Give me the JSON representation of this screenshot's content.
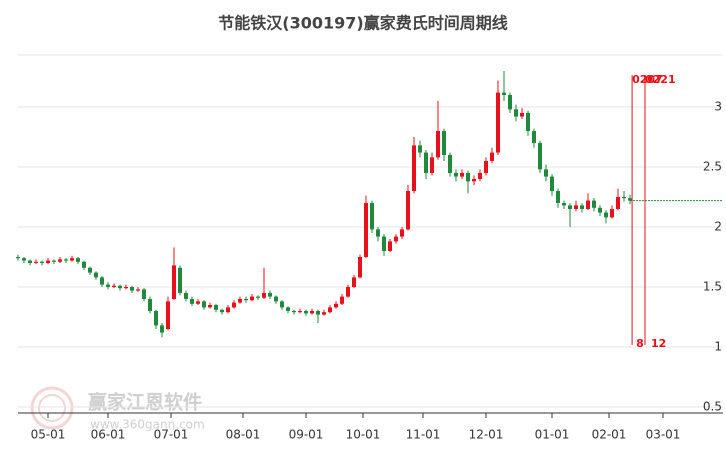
{
  "chart_data": {
    "type": "candlestick",
    "title": "节能铁汉(300197)赢家费氏时间周期线",
    "watermark": "赢家江恩软件",
    "watermark_url": "www.360gann.com",
    "up_color": "#e8101a",
    "down_color": "#1f8a3c",
    "xlim": [
      0,
      235
    ],
    "ylim": [
      0.45,
      3.433
    ],
    "yticks": [
      0.5,
      1,
      1.5,
      2,
      2.5,
      3
    ],
    "grid": true,
    "xticks": [
      {
        "value": 10,
        "label": "05-01"
      },
      {
        "value": 30,
        "label": "06-01"
      },
      {
        "value": 51,
        "label": "07-01"
      },
      {
        "value": 75,
        "label": "08-01"
      },
      {
        "value": 96,
        "label": "09-01"
      },
      {
        "value": 115,
        "label": "10-01"
      },
      {
        "value": 135,
        "label": "11-01"
      },
      {
        "value": 156,
        "label": "12-01"
      },
      {
        "value": 178,
        "label": "01-01"
      },
      {
        "value": 197,
        "label": "02-01"
      },
      {
        "value": 215,
        "label": "03-01"
      }
    ],
    "cycle_lines": [
      {
        "x": 204.7,
        "top_label": "0207",
        "bottom_label": "8"
      },
      {
        "x": 209,
        "top_label": "0221",
        "bottom_label": "12"
      }
    ],
    "x": [
      0,
      2,
      4,
      6,
      8,
      10,
      12,
      14,
      16,
      18,
      20,
      22,
      24,
      26,
      28,
      30,
      32,
      34,
      36,
      38,
      40,
      42,
      44,
      46,
      48,
      50,
      52,
      54,
      56,
      58,
      60,
      62,
      64,
      66,
      68,
      70,
      72,
      74,
      76,
      78,
      80,
      82,
      84,
      86,
      88,
      90,
      92,
      94,
      96,
      98,
      100,
      102,
      104,
      106,
      108,
      110,
      112,
      114,
      116,
      118,
      120,
      122,
      124,
      126,
      128,
      130,
      132,
      134,
      136,
      138,
      140,
      142,
      144,
      146,
      148,
      150,
      152,
      154,
      156,
      158,
      160,
      162,
      164,
      166,
      168,
      170,
      172,
      174,
      176,
      178,
      180,
      182,
      184,
      186,
      188,
      190,
      192,
      194,
      196,
      198,
      200,
      202,
      204
    ],
    "candles": [
      [
        1.75,
        1.77,
        1.72,
        1.74
      ],
      [
        1.74,
        1.75,
        1.7,
        1.72
      ],
      [
        1.72,
        1.73,
        1.68,
        1.7
      ],
      [
        1.7,
        1.73,
        1.69,
        1.71
      ],
      [
        1.71,
        1.72,
        1.68,
        1.7
      ],
      [
        1.7,
        1.74,
        1.69,
        1.72
      ],
      [
        1.72,
        1.73,
        1.69,
        1.71
      ],
      [
        1.71,
        1.75,
        1.7,
        1.73
      ],
      [
        1.73,
        1.74,
        1.7,
        1.72
      ],
      [
        1.72,
        1.76,
        1.71,
        1.74
      ],
      [
        1.74,
        1.75,
        1.69,
        1.71
      ],
      [
        1.71,
        1.72,
        1.64,
        1.66
      ],
      [
        1.66,
        1.67,
        1.6,
        1.62
      ],
      [
        1.62,
        1.63,
        1.56,
        1.58
      ],
      [
        1.58,
        1.59,
        1.5,
        1.52
      ],
      [
        1.52,
        1.54,
        1.48,
        1.5
      ],
      [
        1.5,
        1.53,
        1.49,
        1.51
      ],
      [
        1.51,
        1.52,
        1.47,
        1.49
      ],
      [
        1.49,
        1.52,
        1.48,
        1.5
      ],
      [
        1.5,
        1.51,
        1.45,
        1.47
      ],
      [
        1.47,
        1.5,
        1.46,
        1.48
      ],
      [
        1.48,
        1.49,
        1.38,
        1.4
      ],
      [
        1.4,
        1.42,
        1.28,
        1.3
      ],
      [
        1.3,
        1.31,
        1.15,
        1.18
      ],
      [
        1.18,
        1.2,
        1.08,
        1.12
      ],
      [
        1.15,
        1.42,
        1.14,
        1.38
      ],
      [
        1.4,
        1.83,
        1.39,
        1.68
      ],
      [
        1.66,
        1.68,
        1.43,
        1.45
      ],
      [
        1.45,
        1.47,
        1.38,
        1.4
      ],
      [
        1.4,
        1.42,
        1.34,
        1.36
      ],
      [
        1.36,
        1.4,
        1.35,
        1.38
      ],
      [
        1.38,
        1.39,
        1.31,
        1.33
      ],
      [
        1.33,
        1.37,
        1.32,
        1.35
      ],
      [
        1.35,
        1.36,
        1.29,
        1.31
      ],
      [
        1.31,
        1.32,
        1.27,
        1.29
      ],
      [
        1.29,
        1.35,
        1.28,
        1.33
      ],
      [
        1.33,
        1.39,
        1.32,
        1.37
      ],
      [
        1.37,
        1.42,
        1.36,
        1.4
      ],
      [
        1.4,
        1.42,
        1.37,
        1.39
      ],
      [
        1.39,
        1.44,
        1.38,
        1.42
      ],
      [
        1.42,
        1.43,
        1.39,
        1.41
      ],
      [
        1.41,
        1.66,
        1.4,
        1.45
      ],
      [
        1.45,
        1.47,
        1.4,
        1.42
      ],
      [
        1.42,
        1.43,
        1.36,
        1.38
      ],
      [
        1.38,
        1.39,
        1.31,
        1.33
      ],
      [
        1.33,
        1.34,
        1.28,
        1.3
      ],
      [
        1.3,
        1.31,
        1.27,
        1.29
      ],
      [
        1.29,
        1.32,
        1.28,
        1.3
      ],
      [
        1.3,
        1.31,
        1.26,
        1.28
      ],
      [
        1.28,
        1.32,
        1.27,
        1.3
      ],
      [
        1.3,
        1.31,
        1.2,
        1.27
      ],
      [
        1.27,
        1.31,
        1.26,
        1.29
      ],
      [
        1.29,
        1.35,
        1.28,
        1.33
      ],
      [
        1.33,
        1.38,
        1.32,
        1.36
      ],
      [
        1.36,
        1.44,
        1.35,
        1.42
      ],
      [
        1.42,
        1.52,
        1.41,
        1.5
      ],
      [
        1.5,
        1.6,
        1.49,
        1.58
      ],
      [
        1.58,
        1.77,
        1.57,
        1.75
      ],
      [
        1.75,
        2.26,
        1.74,
        2.2
      ],
      [
        2.2,
        2.22,
        1.95,
        1.98
      ],
      [
        1.98,
        2.0,
        1.88,
        1.92
      ],
      [
        1.92,
        1.94,
        1.76,
        1.8
      ],
      [
        1.8,
        1.9,
        1.79,
        1.88
      ],
      [
        1.88,
        1.94,
        1.86,
        1.92
      ],
      [
        1.92,
        2.0,
        1.9,
        1.98
      ],
      [
        1.98,
        2.35,
        1.97,
        2.3
      ],
      [
        2.3,
        2.75,
        2.28,
        2.68
      ],
      [
        2.68,
        2.72,
        2.58,
        2.62
      ],
      [
        2.62,
        2.64,
        2.4,
        2.45
      ],
      [
        2.45,
        2.62,
        2.43,
        2.58
      ],
      [
        2.58,
        3.05,
        2.56,
        2.8
      ],
      [
        2.8,
        2.82,
        2.55,
        2.6
      ],
      [
        2.6,
        2.62,
        2.42,
        2.45
      ],
      [
        2.45,
        2.48,
        2.38,
        2.42
      ],
      [
        2.42,
        2.48,
        2.4,
        2.45
      ],
      [
        2.45,
        2.47,
        2.28,
        2.38
      ],
      [
        2.38,
        2.43,
        2.35,
        2.4
      ],
      [
        2.4,
        2.48,
        2.38,
        2.45
      ],
      [
        2.45,
        2.58,
        2.43,
        2.55
      ],
      [
        2.55,
        2.66,
        2.53,
        2.62
      ],
      [
        2.62,
        3.22,
        2.6,
        3.12
      ],
      [
        3.12,
        3.3,
        3.05,
        3.1
      ],
      [
        3.1,
        3.12,
        2.95,
        2.98
      ],
      [
        2.98,
        3.02,
        2.88,
        2.92
      ],
      [
        2.92,
        2.99,
        2.9,
        2.95
      ],
      [
        2.95,
        2.97,
        2.76,
        2.8
      ],
      [
        2.8,
        2.82,
        2.66,
        2.7
      ],
      [
        2.7,
        2.72,
        2.45,
        2.48
      ],
      [
        2.48,
        2.52,
        2.38,
        2.42
      ],
      [
        2.42,
        2.44,
        2.26,
        2.3
      ],
      [
        2.3,
        2.32,
        2.16,
        2.2
      ],
      [
        2.2,
        2.22,
        2.15,
        2.18
      ],
      [
        2.18,
        2.2,
        2.0,
        2.15
      ],
      [
        2.15,
        2.22,
        2.13,
        2.18
      ],
      [
        2.18,
        2.2,
        2.12,
        2.15
      ],
      [
        2.15,
        2.28,
        2.14,
        2.22
      ],
      [
        2.22,
        2.24,
        2.13,
        2.16
      ],
      [
        2.16,
        2.18,
        2.09,
        2.12
      ],
      [
        2.12,
        2.14,
        2.03,
        2.08
      ],
      [
        2.08,
        2.18,
        2.07,
        2.15
      ],
      [
        2.15,
        2.32,
        2.14,
        2.25
      ],
      [
        2.25,
        2.3,
        2.21,
        2.24
      ],
      [
        2.24,
        2.27,
        2.19,
        2.22
      ]
    ]
  }
}
